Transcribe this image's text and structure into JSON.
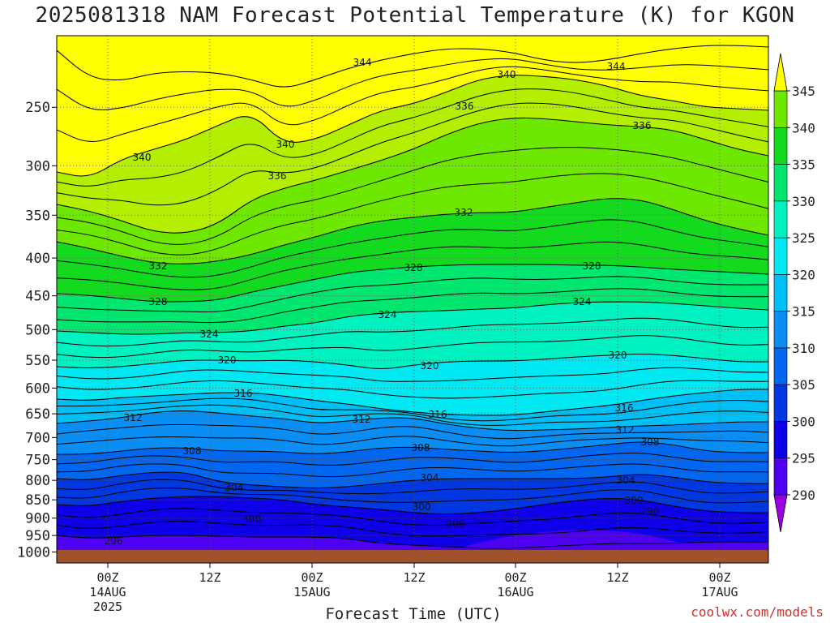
{
  "chart_data": {
    "type": "heatmap",
    "title": "2025081318 NAM Forecast Potential Temperature (K) for KGON",
    "xlabel": "Forecast Time (UTC)",
    "ylabel": "",
    "y_axis": {
      "scale": "log",
      "inverted": true,
      "ticks": [
        250,
        300,
        350,
        400,
        450,
        500,
        550,
        600,
        650,
        700,
        750,
        800,
        850,
        900,
        950,
        1000
      ],
      "range": [
        200,
        1035
      ]
    },
    "x_ticks": [
      {
        "label": "00Z",
        "date": "14AUG",
        "year": "2025"
      },
      {
        "label": "12Z",
        "date": "",
        "year": ""
      },
      {
        "label": "00Z",
        "date": "15AUG",
        "year": ""
      },
      {
        "label": "12Z",
        "date": "",
        "year": ""
      },
      {
        "label": "00Z",
        "date": "16AUG",
        "year": ""
      },
      {
        "label": "12Z",
        "date": "",
        "year": ""
      },
      {
        "label": "00Z",
        "date": "17AUG",
        "year": ""
      }
    ],
    "colorbar": {
      "levels": [
        "290",
        "295",
        "300",
        "305",
        "310",
        "315",
        "320",
        "325",
        "330",
        "335",
        "340",
        "345"
      ],
      "colors": [
        "#9b00e0",
        "#4e00f2",
        "#0e00e8",
        "#0037e0",
        "#0266ee",
        "#0a8ef4",
        "#00bff5",
        "#00e8f2",
        "#00f2c0",
        "#00e66e",
        "#13da1e",
        "#6ee800",
        "#b4ee00",
        "#ffff00"
      ]
    },
    "contour_levels": [
      296,
      300,
      304,
      308,
      312,
      316,
      320,
      324,
      328,
      332,
      336,
      340,
      344
    ],
    "contour_labels": [
      "296",
      "300",
      "304",
      "308",
      "312",
      "316",
      "320",
      "324",
      "328",
      "332",
      "336",
      "340",
      "344"
    ],
    "grid": true,
    "ground_color": "#a0522d"
  },
  "footer": {
    "credit": "coolwx.com/models"
  }
}
